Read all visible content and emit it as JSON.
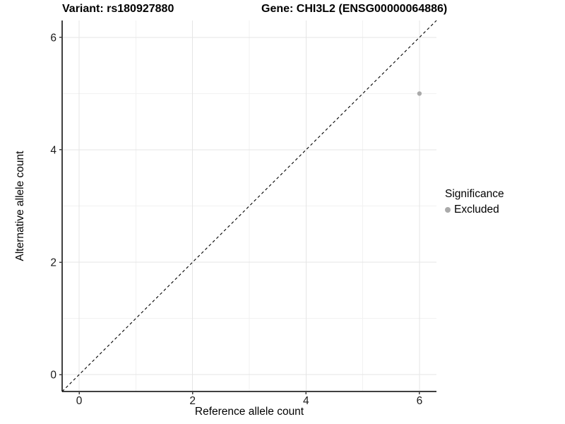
{
  "chart_data": {
    "type": "scatter",
    "titles": [
      "Variant: rs180927880",
      "Gene: CHI3L2 (ENSG00000064886)"
    ],
    "xlabel": "Reference allele count",
    "ylabel": "Alternative allele count",
    "xlim": [
      -0.3,
      6.3
    ],
    "ylim": [
      -0.3,
      6.3
    ],
    "x_major_ticks": [
      0,
      2,
      4,
      6
    ],
    "y_major_ticks": [
      0,
      2,
      4,
      6
    ],
    "x_minor_gridlines": [
      1,
      3,
      5
    ],
    "y_minor_gridlines": [
      1,
      3,
      5
    ],
    "grid": true,
    "points": [
      {
        "x": 6,
        "y": 5,
        "series": "Excluded"
      }
    ],
    "identity_line": {
      "slope": 1,
      "intercept": 0,
      "style": "dashed"
    },
    "legend": {
      "title": "Significance",
      "position": "right",
      "items": [
        {
          "label": "Excluded",
          "color": "#aaaaaa"
        }
      ]
    },
    "colors": {
      "point_excluded": "#aaaaaa",
      "grid_major": "#e5e5e5",
      "grid_minor": "#f1f1f1",
      "axis_line": "#404040",
      "identity_line": "#000000",
      "tick_text": "#1a1a1a"
    }
  }
}
